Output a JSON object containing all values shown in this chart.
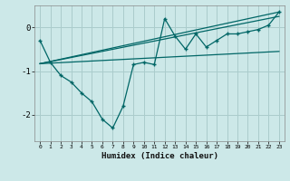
{
  "xlabel": "Humidex (Indice chaleur)",
  "bg_color": "#cce8e8",
  "grid_color": "#aacccc",
  "line_color": "#006666",
  "x_data": [
    0,
    1,
    2,
    3,
    4,
    5,
    6,
    7,
    8,
    9,
    10,
    11,
    12,
    13,
    14,
    15,
    16,
    17,
    18,
    19,
    20,
    21,
    22,
    23
  ],
  "y_main": [
    -0.3,
    -0.8,
    -1.1,
    -1.25,
    -1.5,
    -1.7,
    -2.1,
    -2.3,
    -1.8,
    -0.85,
    -0.8,
    -0.85,
    0.2,
    -0.2,
    -0.5,
    -0.15,
    -0.45,
    -0.3,
    -0.15,
    -0.15,
    -0.1,
    -0.05,
    0.05,
    0.35
  ],
  "trend1_x": [
    0,
    23
  ],
  "trend1_y": [
    -0.83,
    -0.55
  ],
  "trend2_x": [
    0,
    23
  ],
  "trend2_y": [
    -0.83,
    0.35
  ],
  "trend3_x": [
    0,
    23
  ],
  "trend3_y": [
    -0.83,
    0.25
  ],
  "ylim": [
    -2.6,
    0.5
  ],
  "xlim": [
    -0.5,
    23.5
  ],
  "yticks": [
    -2,
    -1,
    0
  ],
  "xticks": [
    0,
    1,
    2,
    3,
    4,
    5,
    6,
    7,
    8,
    9,
    10,
    11,
    12,
    13,
    14,
    15,
    16,
    17,
    18,
    19,
    20,
    21,
    22,
    23
  ]
}
